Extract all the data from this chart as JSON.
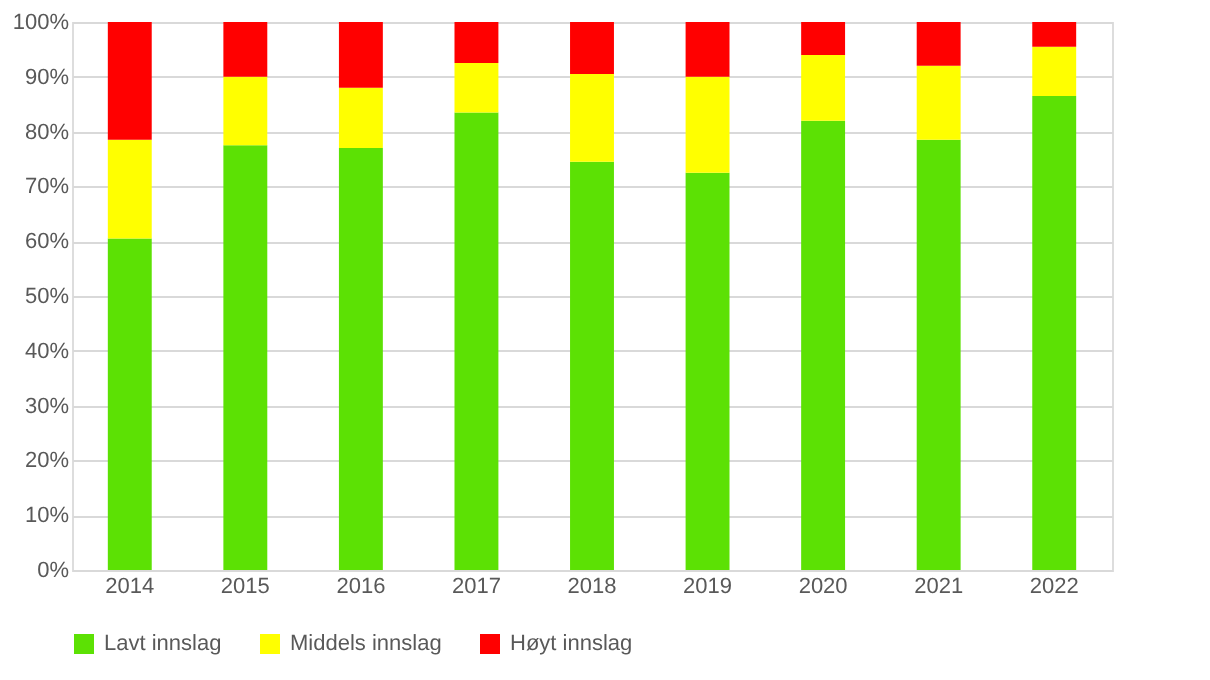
{
  "chart_data": {
    "type": "bar",
    "stacked": true,
    "categories": [
      "2014",
      "2015",
      "2016",
      "2017",
      "2018",
      "2019",
      "2020",
      "2021",
      "2022"
    ],
    "series": [
      {
        "name": "Lavt innslag",
        "color": "#5ce104",
        "values": [
          60.5,
          77.5,
          77,
          83.5,
          74.5,
          72.5,
          82,
          78.5,
          86.5
        ]
      },
      {
        "name": "Middels innslag",
        "color": "#ffff00",
        "values": [
          18,
          12.5,
          11,
          9,
          16,
          17.5,
          12,
          13.5,
          9
        ]
      },
      {
        "name": "Høyt innslag",
        "color": "#ff0000",
        "values": [
          21.5,
          10,
          12,
          7.5,
          9.5,
          10,
          6,
          8,
          4.5
        ]
      }
    ],
    "ylim": [
      0,
      100
    ],
    "yticks": [
      {
        "value": 0,
        "label": "0%"
      },
      {
        "value": 10,
        "label": "10%"
      },
      {
        "value": 20,
        "label": "20%"
      },
      {
        "value": 30,
        "label": "30%"
      },
      {
        "value": 40,
        "label": "40%"
      },
      {
        "value": 50,
        "label": "50%"
      },
      {
        "value": 60,
        "label": "60%"
      },
      {
        "value": 70,
        "label": "70%"
      },
      {
        "value": 80,
        "label": "80%"
      },
      {
        "value": 90,
        "label": "90%"
      },
      {
        "value": 100,
        "label": "100%"
      }
    ],
    "grid": "y",
    "legend": "bottom"
  }
}
